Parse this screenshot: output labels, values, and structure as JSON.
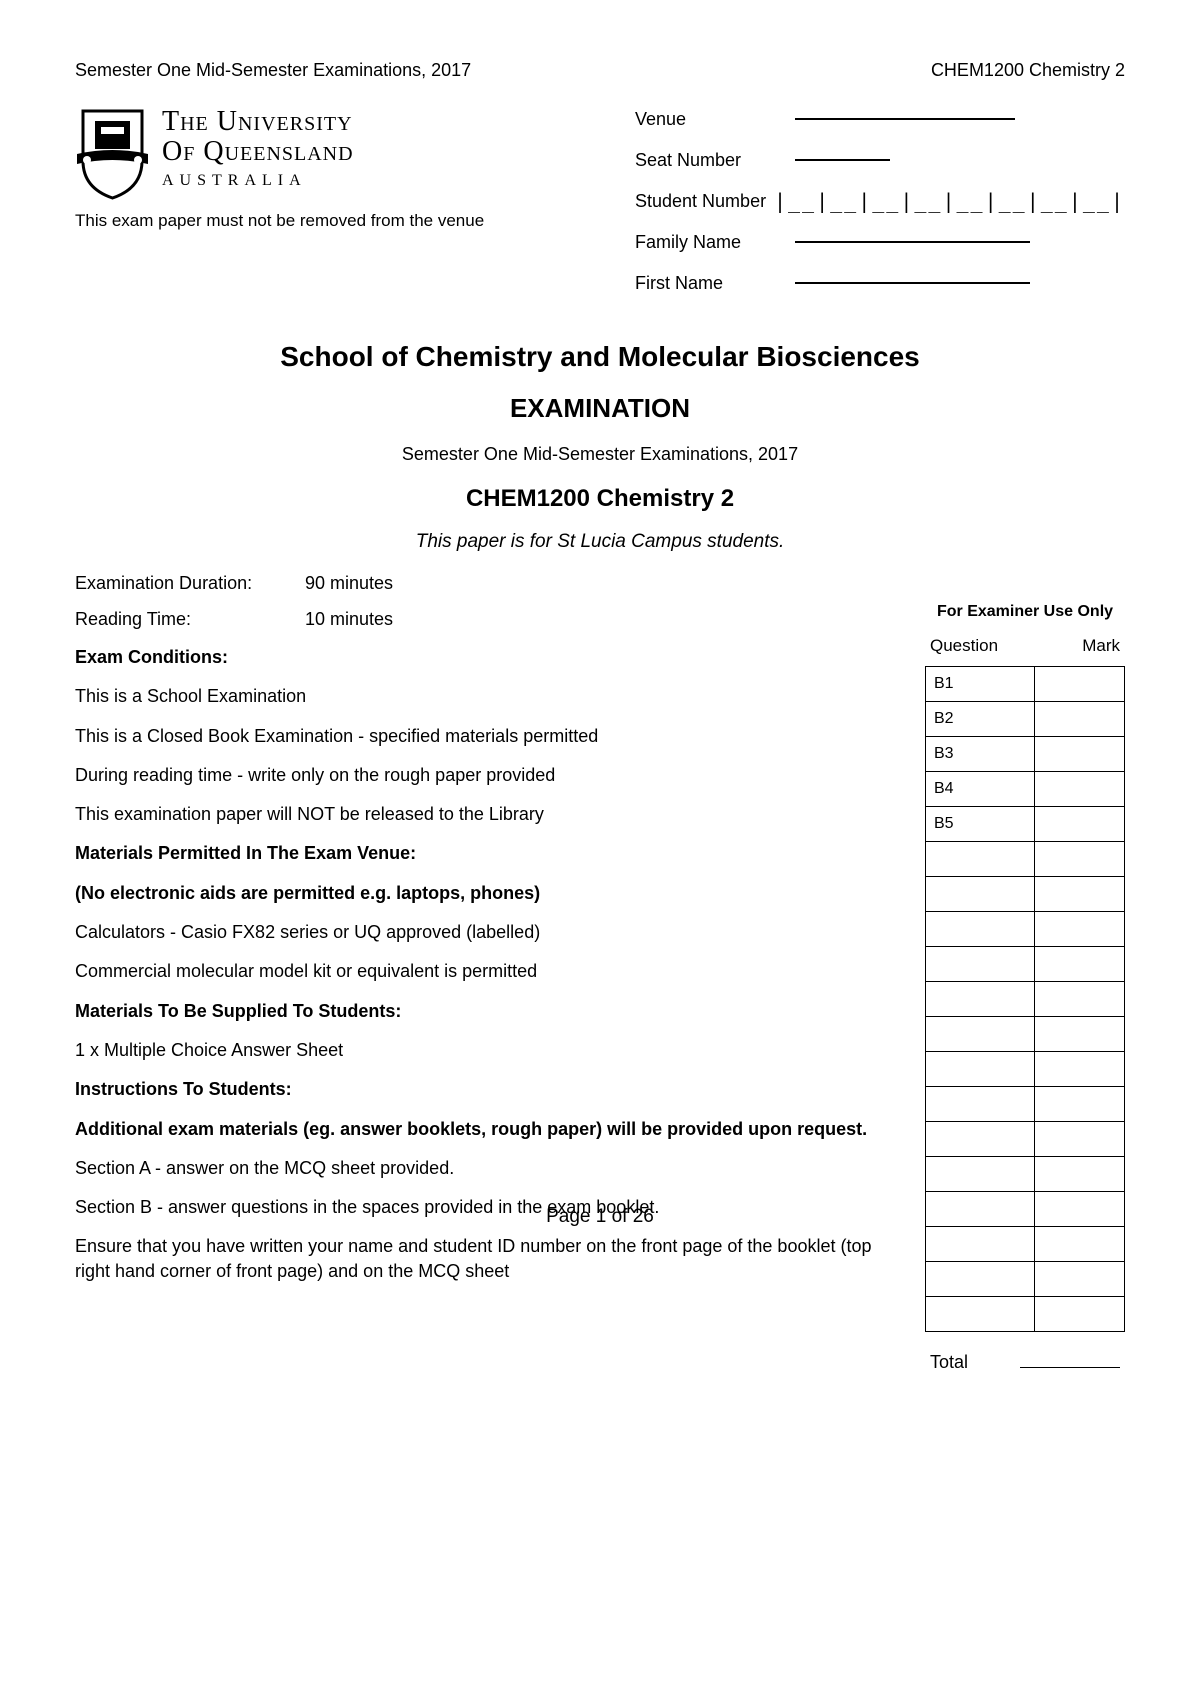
{
  "header": {
    "left": "Semester One Mid-Semester Examinations, 2017",
    "right": "CHEM1200 Chemistry 2"
  },
  "logo": {
    "line1": "The University",
    "line2": "Of Queensland",
    "line3": "AUSTRALIA"
  },
  "venue_note": "This exam paper must not be removed from the venue",
  "info_fields": {
    "venue": "Venue",
    "seat": "Seat Number",
    "student_number": "Student Number",
    "student_number_boxes": "|__|__|__|__|__|__|__|__|",
    "family_name": "Family Name",
    "first_name": "First Name"
  },
  "titles": {
    "school": "School of Chemistry and Molecular Biosciences",
    "exam": "EXAMINATION",
    "semester": "Semester One Mid-Semester Examinations, 2017",
    "course": "CHEM1200 Chemistry 2",
    "campus": "This paper is for St Lucia Campus students."
  },
  "duration": {
    "label": "Examination Duration:",
    "value": "90 minutes"
  },
  "reading": {
    "label": "Reading Time:",
    "value": "10 minutes"
  },
  "sections": {
    "conditions_heading": "Exam Conditions:",
    "cond1": "This is a School Examination",
    "cond2": "This is a Closed Book Examination - specified materials permitted",
    "cond3": "During reading time - write only on the rough paper provided",
    "cond4": "This examination paper will NOT be released to the Library",
    "materials_heading": "Materials Permitted In The Exam Venue:",
    "materials_sub": "(No electronic aids are permitted e.g. laptops, phones)",
    "mat1": "Calculators - Casio FX82 series or UQ approved (labelled)",
    "mat2": "Commercial molecular model kit or equivalent is permitted",
    "supplied_heading": "Materials To Be Supplied To Students:",
    "supplied1": "1 x Multiple Choice Answer Sheet",
    "instructions_heading": "Instructions To Students:",
    "inst_add": "Additional exam materials (eg. answer booklets, rough paper) will be provided upon request.",
    "inst1": "Section A - answer on the MCQ sheet provided.",
    "inst2": "Section B - answer questions in the spaces provided in the exam booklet.",
    "inst3": "Ensure that you have written your name and student ID number on the front page of the booklet (top right hand corner of front page) and on the MCQ sheet"
  },
  "examiner": {
    "title": "For Examiner Use Only",
    "col1": "Question",
    "col2": "Mark",
    "rows": [
      "B1",
      "B2",
      "B3",
      "B4",
      "B5",
      "",
      "",
      "",
      "",
      "",
      "",
      "",
      "",
      "",
      "",
      "",
      "",
      "",
      ""
    ],
    "total": "Total"
  },
  "page": "Page 1 of 26"
}
